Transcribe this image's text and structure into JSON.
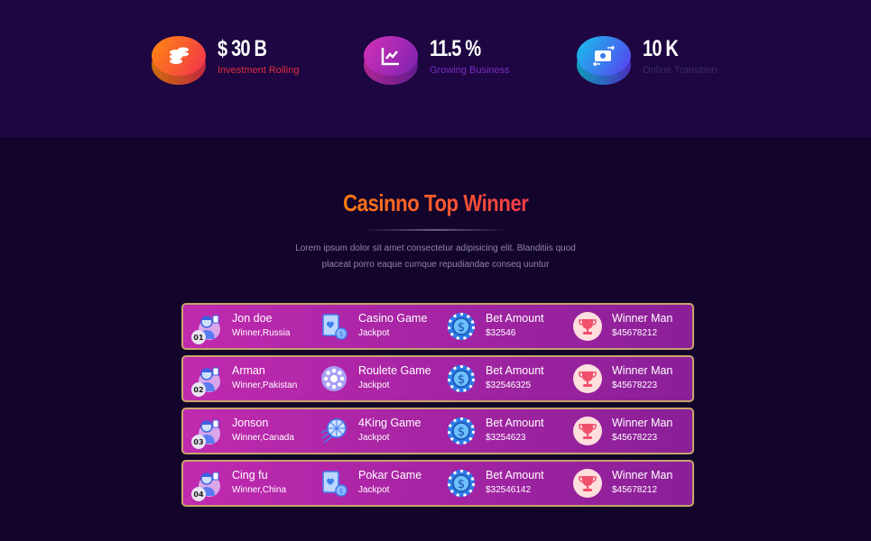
{
  "stats": [
    {
      "value": "$ 30 B",
      "label": "Investment Rolling",
      "icon": "coins-icon",
      "label_color": "#e0303e",
      "grad": [
        "#ff8a10",
        "#f2304e"
      ]
    },
    {
      "value": "11.5 %",
      "label": "Growing Business",
      "icon": "chart-line-icon",
      "label_color": "#7a2cc4",
      "grad": [
        "#d631b8",
        "#7a22b0"
      ]
    },
    {
      "value": "10 K",
      "label": "Online Transition",
      "icon": "money-transfer-icon",
      "label_color": "#3b2b6c",
      "grad": [
        "#17c2ea",
        "#5a3cf0"
      ]
    }
  ],
  "section": {
    "title": "Casinno Top Winner",
    "description": "Lorem ipsum dolor sit amet consectetur adipisicing elit. Blanditiis quod placeat porro eaque cumque repudiandae conseq uuntur"
  },
  "winners": [
    {
      "rank": "01",
      "name": "Jon doe",
      "location": "Winner,Russia",
      "game": "Casino Game",
      "game_icon": "cards-icon",
      "game_sub": "Jackpot",
      "bet_label": "Bet Amount",
      "bet": "$32546",
      "win_label": "Winner Man",
      "win": "$45678212"
    },
    {
      "rank": "02",
      "name": "Arman",
      "location": "Winner,Pakistan",
      "game": "Roulete Game",
      "game_icon": "roulette-icon",
      "game_sub": "Jackpot",
      "bet_label": "Bet Amount",
      "bet": "$32546325",
      "win_label": "Winner Man",
      "win": "$45678223"
    },
    {
      "rank": "03",
      "name": "Jonson",
      "location": "Winner,Canada",
      "game": "4King Game",
      "game_icon": "ball-icon",
      "game_sub": "Jackpot",
      "bet_label": "Bet Amount",
      "bet": "$3254623",
      "win_label": "Winner Man",
      "win": "$45678223"
    },
    {
      "rank": "04",
      "name": "Cing fu",
      "location": "Winner,China",
      "game": "Pokar Game",
      "game_icon": "cards-icon",
      "game_sub": "Jackpot",
      "bet_label": "Bet Amount",
      "bet": "$32546142",
      "win_label": "Winner Man",
      "win": "$45678212"
    }
  ]
}
